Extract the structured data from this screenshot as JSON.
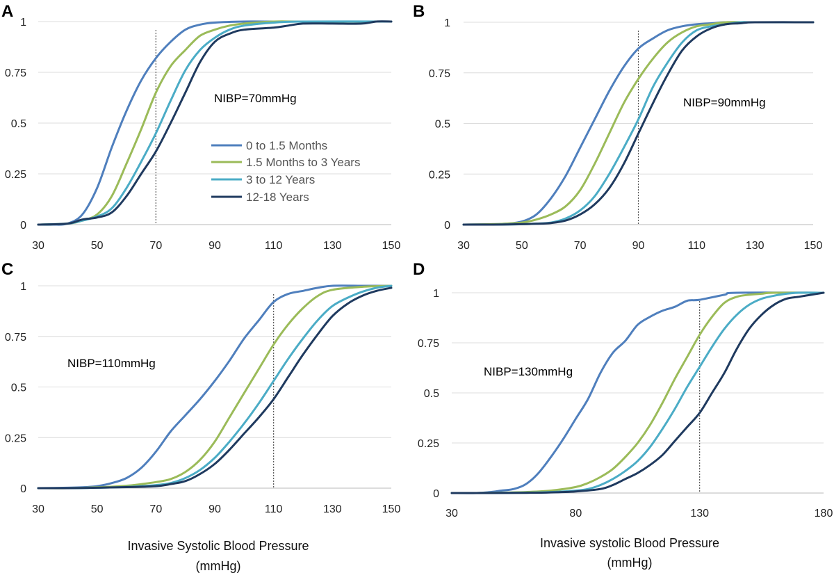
{
  "series_colors": [
    "#4f7fbd",
    "#9bbb59",
    "#4bacc6",
    "#1f3a5f"
  ],
  "legend": [
    "0 to 1.5 Months",
    "1.5 Months to 3 Years",
    "3 to 12 Years",
    "12-18 Years"
  ],
  "x_titles": {
    "left": [
      "Invasive Systolic Blood Pressure",
      "(mmHg)"
    ],
    "right": [
      "Invasive systolic Blood Pressure",
      "(mmHg)"
    ]
  },
  "chart_data": [
    {
      "type": "line",
      "panel": "A",
      "annotation": "NIBP=70mmHg",
      "reference_x": 70,
      "xlim": [
        30,
        150
      ],
      "ylim": [
        0,
        1
      ],
      "xticks": [
        30,
        50,
        70,
        90,
        110,
        130,
        150
      ],
      "yticks": [
        "0",
        "0.25",
        "0.5",
        "0.75",
        "1"
      ],
      "grid": true,
      "legend_position": "center",
      "series": [
        {
          "name": "0 to 1.5 Months",
          "x": [
            30,
            35,
            40,
            45,
            50,
            55,
            60,
            65,
            70,
            75,
            80,
            85,
            90,
            100,
            110,
            150
          ],
          "y": [
            0,
            0,
            0.005,
            0.05,
            0.18,
            0.38,
            0.56,
            0.71,
            0.82,
            0.9,
            0.96,
            0.985,
            0.995,
            1,
            1,
            1
          ]
        },
        {
          "name": "1.5 Months to 3 Years",
          "x": [
            30,
            40,
            45,
            50,
            55,
            60,
            65,
            70,
            75,
            80,
            85,
            90,
            95,
            100,
            110,
            120,
            150
          ],
          "y": [
            0,
            0.005,
            0.02,
            0.05,
            0.14,
            0.3,
            0.47,
            0.65,
            0.78,
            0.86,
            0.93,
            0.96,
            0.98,
            0.99,
            1,
            1,
            1
          ]
        },
        {
          "name": "3 to 12 Years",
          "x": [
            30,
            40,
            45,
            50,
            55,
            60,
            65,
            70,
            75,
            80,
            85,
            90,
            95,
            100,
            110,
            120,
            150
          ],
          "y": [
            0,
            0.005,
            0.02,
            0.04,
            0.08,
            0.18,
            0.31,
            0.45,
            0.61,
            0.76,
            0.86,
            0.92,
            0.96,
            0.98,
            0.995,
            1,
            1
          ]
        },
        {
          "name": "12-18 Years",
          "x": [
            30,
            40,
            45,
            50,
            55,
            60,
            65,
            70,
            75,
            80,
            85,
            90,
            95,
            100,
            110,
            115,
            120,
            130,
            140,
            145,
            150
          ],
          "y": [
            0,
            0.005,
            0.025,
            0.035,
            0.06,
            0.14,
            0.25,
            0.36,
            0.5,
            0.65,
            0.8,
            0.9,
            0.94,
            0.96,
            0.97,
            0.98,
            0.99,
            0.99,
            0.99,
            1,
            1
          ]
        }
      ]
    },
    {
      "type": "line",
      "panel": "B",
      "annotation": "NIBP=90mmHg",
      "reference_x": 90,
      "xlim": [
        30,
        150
      ],
      "ylim": [
        0,
        1
      ],
      "xticks": [
        30,
        50,
        70,
        90,
        110,
        130,
        150
      ],
      "yticks": [
        "0",
        "0.25",
        "0.5",
        "0.75",
        "1"
      ],
      "grid": true,
      "series": [
        {
          "name": "0 to 1.5 Months",
          "x": [
            30,
            40,
            45,
            50,
            55,
            60,
            65,
            70,
            75,
            80,
            85,
            90,
            95,
            100,
            105,
            110,
            115,
            120,
            130,
            150
          ],
          "y": [
            0,
            0.002,
            0.005,
            0.015,
            0.05,
            0.13,
            0.24,
            0.38,
            0.52,
            0.66,
            0.78,
            0.87,
            0.92,
            0.96,
            0.98,
            0.99,
            0.995,
            1,
            1,
            1
          ]
        },
        {
          "name": "1.5 Months to 3 Years",
          "x": [
            30,
            40,
            45,
            50,
            55,
            60,
            65,
            70,
            75,
            80,
            85,
            90,
            95,
            100,
            105,
            110,
            115,
            120,
            130,
            150
          ],
          "y": [
            0,
            0.002,
            0.005,
            0.01,
            0.025,
            0.05,
            0.09,
            0.17,
            0.3,
            0.45,
            0.6,
            0.72,
            0.82,
            0.9,
            0.95,
            0.98,
            0.99,
            1,
            1,
            1
          ]
        },
        {
          "name": "3 to 12 Years",
          "x": [
            30,
            40,
            50,
            55,
            60,
            65,
            70,
            75,
            80,
            85,
            90,
            95,
            100,
            105,
            110,
            115,
            120,
            125,
            130,
            150
          ],
          "y": [
            0,
            0,
            0.002,
            0.005,
            0.01,
            0.03,
            0.07,
            0.14,
            0.25,
            0.38,
            0.52,
            0.68,
            0.8,
            0.9,
            0.96,
            0.98,
            0.99,
            1,
            1,
            1
          ]
        },
        {
          "name": "12-18 Years",
          "x": [
            30,
            40,
            50,
            55,
            60,
            65,
            70,
            75,
            80,
            85,
            90,
            95,
            100,
            105,
            110,
            115,
            120,
            125,
            130,
            150
          ],
          "y": [
            0,
            0,
            0.002,
            0.004,
            0.008,
            0.02,
            0.05,
            0.1,
            0.18,
            0.3,
            0.45,
            0.6,
            0.74,
            0.86,
            0.93,
            0.97,
            0.99,
            0.995,
            1,
            1
          ]
        }
      ]
    },
    {
      "type": "line",
      "panel": "C",
      "annotation": "NIBP=110mmHg",
      "reference_x": 110,
      "xlim": [
        30,
        150
      ],
      "ylim": [
        0,
        1
      ],
      "xticks": [
        30,
        50,
        70,
        90,
        110,
        130,
        150
      ],
      "yticks": [
        "0",
        "0.25",
        "0.5",
        "0.75",
        "1"
      ],
      "grid": true,
      "series": [
        {
          "name": "0 to 1.5 Months",
          "x": [
            30,
            40,
            45,
            50,
            55,
            60,
            65,
            70,
            75,
            80,
            85,
            90,
            95,
            100,
            105,
            110,
            115,
            120,
            125,
            130,
            140,
            150
          ],
          "y": [
            0,
            0.002,
            0.004,
            0.01,
            0.025,
            0.05,
            0.1,
            0.18,
            0.28,
            0.36,
            0.44,
            0.53,
            0.63,
            0.74,
            0.83,
            0.92,
            0.96,
            0.975,
            0.99,
            1,
            1,
            1
          ]
        },
        {
          "name": "1.5 Months to 3 Years",
          "x": [
            30,
            40,
            50,
            60,
            65,
            70,
            75,
            80,
            85,
            90,
            95,
            100,
            105,
            110,
            115,
            120,
            125,
            130,
            140,
            150
          ],
          "y": [
            0,
            0,
            0.004,
            0.012,
            0.02,
            0.03,
            0.045,
            0.08,
            0.14,
            0.23,
            0.35,
            0.47,
            0.59,
            0.71,
            0.81,
            0.89,
            0.95,
            0.98,
            0.995,
            1
          ]
        },
        {
          "name": "3 to 12 Years",
          "x": [
            30,
            40,
            50,
            60,
            70,
            75,
            80,
            85,
            90,
            95,
            100,
            105,
            110,
            115,
            120,
            125,
            130,
            135,
            140,
            145,
            150
          ],
          "y": [
            0,
            0,
            0.002,
            0.006,
            0.015,
            0.025,
            0.05,
            0.09,
            0.15,
            0.23,
            0.32,
            0.42,
            0.53,
            0.64,
            0.74,
            0.83,
            0.9,
            0.94,
            0.97,
            0.99,
            1
          ]
        },
        {
          "name": "12-18 Years",
          "x": [
            30,
            40,
            50,
            60,
            70,
            75,
            80,
            85,
            90,
            95,
            100,
            105,
            110,
            115,
            120,
            125,
            130,
            135,
            140,
            145,
            150
          ],
          "y": [
            0,
            0,
            0.002,
            0.005,
            0.01,
            0.02,
            0.035,
            0.07,
            0.12,
            0.19,
            0.27,
            0.35,
            0.44,
            0.55,
            0.66,
            0.76,
            0.85,
            0.91,
            0.95,
            0.975,
            0.99
          ]
        }
      ]
    },
    {
      "type": "line",
      "panel": "D",
      "annotation": "NIBP=130mmHg",
      "reference_x": 130,
      "xlim": [
        30,
        180
      ],
      "ylim": [
        0,
        1
      ],
      "xticks": [
        30,
        80,
        130,
        180
      ],
      "yticks": [
        "0",
        "0.25",
        "0.5",
        "0.75",
        "1"
      ],
      "grid": true,
      "series": [
        {
          "name": "0 to 1.5 Months",
          "x": [
            30,
            40,
            45,
            50,
            55,
            60,
            65,
            70,
            75,
            80,
            85,
            90,
            95,
            100,
            105,
            110,
            115,
            120,
            125,
            130,
            140,
            145,
            180
          ],
          "y": [
            0,
            0,
            0.004,
            0.012,
            0.02,
            0.045,
            0.1,
            0.18,
            0.27,
            0.37,
            0.47,
            0.6,
            0.7,
            0.76,
            0.84,
            0.88,
            0.91,
            0.93,
            0.96,
            0.965,
            0.99,
            1,
            1
          ]
        },
        {
          "name": "1.5 Months to 3 Years",
          "x": [
            30,
            40,
            50,
            60,
            70,
            80,
            85,
            90,
            95,
            100,
            105,
            110,
            115,
            120,
            125,
            130,
            135,
            140,
            145,
            150,
            155,
            160,
            180
          ],
          "y": [
            0,
            0,
            0.002,
            0.005,
            0.012,
            0.03,
            0.05,
            0.08,
            0.12,
            0.18,
            0.25,
            0.34,
            0.45,
            0.57,
            0.68,
            0.79,
            0.88,
            0.95,
            0.98,
            0.99,
            0.995,
            1,
            1
          ]
        },
        {
          "name": "3 to 12 Years",
          "x": [
            30,
            40,
            60,
            70,
            80,
            85,
            90,
            95,
            100,
            105,
            110,
            115,
            120,
            125,
            130,
            135,
            140,
            145,
            150,
            155,
            160,
            165,
            170,
            180
          ],
          "y": [
            0,
            0,
            0.002,
            0.005,
            0.012,
            0.02,
            0.04,
            0.07,
            0.11,
            0.16,
            0.23,
            0.32,
            0.42,
            0.53,
            0.63,
            0.73,
            0.82,
            0.89,
            0.94,
            0.97,
            0.985,
            0.995,
            1,
            1
          ]
        },
        {
          "name": "12-18 Years",
          "x": [
            30,
            40,
            60,
            70,
            80,
            90,
            95,
            100,
            105,
            110,
            115,
            120,
            125,
            130,
            135,
            140,
            145,
            150,
            155,
            160,
            165,
            170,
            175,
            180
          ],
          "y": [
            0,
            0,
            0.001,
            0.003,
            0.008,
            0.02,
            0.04,
            0.07,
            0.1,
            0.14,
            0.19,
            0.26,
            0.33,
            0.4,
            0.5,
            0.6,
            0.72,
            0.82,
            0.89,
            0.94,
            0.97,
            0.98,
            0.99,
            1
          ]
        }
      ]
    }
  ]
}
